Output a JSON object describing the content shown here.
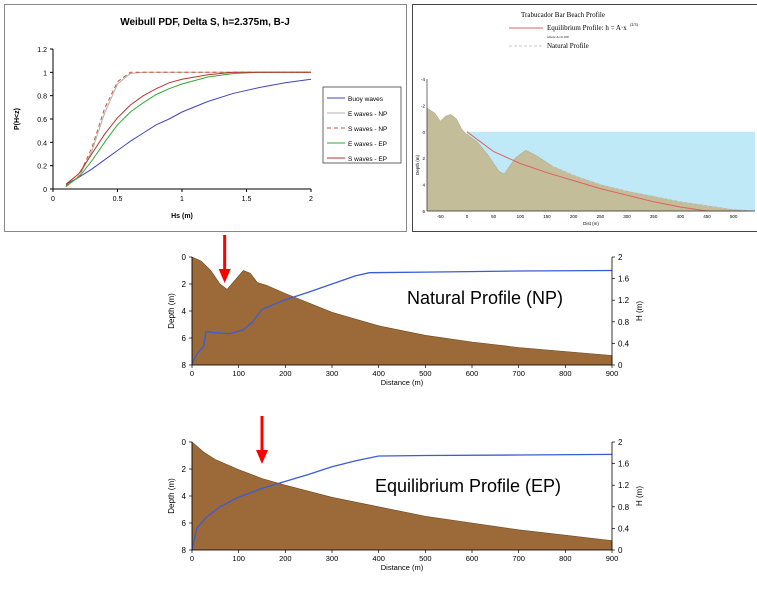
{
  "colors": {
    "sand": "#9b6a38",
    "sand_light": "#c4bd9a",
    "water": "#bfe9f7",
    "blue": "#4f52c8",
    "line_blue": "#3b5bd9",
    "arrow": "#ff0000",
    "red_curve": "#e06060",
    "dash_curve": "#c8c8c8"
  },
  "chart_data": [
    {
      "id": "weibull",
      "type": "line",
      "title": "Weibull PDF, Delta S, h=2.375m, B-J",
      "xlabel": "Hs (m)",
      "ylabel": "P(H<z)",
      "xlim": [
        0,
        2
      ],
      "ylim": [
        0,
        1.2
      ],
      "xticks": [
        "0",
        "0.5",
        "1",
        "1.5",
        "2"
      ],
      "yticks": [
        "0",
        "0.2",
        "0.4",
        "0.6",
        "0.8",
        "1",
        "1.2"
      ],
      "legend": "right",
      "legend_entries": [
        "Buoy waves",
        "E waves - NP",
        "S waves - NP",
        "E waves - EP",
        "S waves - EP"
      ],
      "series": [
        {
          "name": "Buoy waves",
          "color": "#4444bb",
          "dash": "",
          "points": [
            [
              0.1,
              0.04
            ],
            [
              0.2,
              0.1
            ],
            [
              0.3,
              0.17
            ],
            [
              0.4,
              0.25
            ],
            [
              0.5,
              0.33
            ],
            [
              0.6,
              0.41
            ],
            [
              0.7,
              0.48
            ],
            [
              0.8,
              0.55
            ],
            [
              0.9,
              0.6
            ],
            [
              1.0,
              0.66
            ],
            [
              1.2,
              0.75
            ],
            [
              1.4,
              0.82
            ],
            [
              1.6,
              0.87
            ],
            [
              1.8,
              0.91
            ],
            [
              2.0,
              0.94
            ]
          ]
        },
        {
          "name": "E waves - NP",
          "color": "#b0b0b0",
          "dash": "",
          "points": [
            [
              0.1,
              0.02
            ],
            [
              0.2,
              0.1
            ],
            [
              0.3,
              0.32
            ],
            [
              0.4,
              0.65
            ],
            [
              0.5,
              0.9
            ],
            [
              0.6,
              0.99
            ],
            [
              0.7,
              1.0
            ],
            [
              2.0,
              1.0
            ]
          ]
        },
        {
          "name": "S waves - NP",
          "color": "#cc5533",
          "dash": "4,3",
          "points": [
            [
              0.1,
              0.02
            ],
            [
              0.2,
              0.11
            ],
            [
              0.3,
              0.35
            ],
            [
              0.4,
              0.69
            ],
            [
              0.5,
              0.92
            ],
            [
              0.6,
              1.0
            ],
            [
              0.7,
              1.0
            ],
            [
              2.0,
              1.0
            ]
          ]
        },
        {
          "name": "E waves - EP",
          "color": "#33aa33",
          "dash": "",
          "points": [
            [
              0.1,
              0.03
            ],
            [
              0.2,
              0.1
            ],
            [
              0.3,
              0.24
            ],
            [
              0.4,
              0.4
            ],
            [
              0.5,
              0.55
            ],
            [
              0.6,
              0.66
            ],
            [
              0.7,
              0.74
            ],
            [
              0.8,
              0.81
            ],
            [
              0.9,
              0.86
            ],
            [
              1.0,
              0.9
            ],
            [
              1.2,
              0.96
            ],
            [
              1.4,
              0.99
            ],
            [
              1.6,
              1.0
            ],
            [
              2.0,
              1.0
            ]
          ]
        },
        {
          "name": "S waves - EP",
          "color": "#bb3333",
          "dash": "",
          "points": [
            [
              0.1,
              0.04
            ],
            [
              0.2,
              0.13
            ],
            [
              0.3,
              0.3
            ],
            [
              0.4,
              0.47
            ],
            [
              0.5,
              0.61
            ],
            [
              0.6,
              0.72
            ],
            [
              0.7,
              0.8
            ],
            [
              0.8,
              0.86
            ],
            [
              0.9,
              0.91
            ],
            [
              1.0,
              0.94
            ],
            [
              1.2,
              0.98
            ],
            [
              1.4,
              1.0
            ],
            [
              2.0,
              1.0
            ]
          ]
        }
      ]
    },
    {
      "id": "trabucador",
      "type": "area",
      "title": "Trabucador Bar Beach Profile",
      "legend_entries": [
        "Equilibrium Profile: h = A·x",
        "Natural Profile"
      ],
      "legend_exponent": "(2/3)",
      "legend_note": "where A=0.109",
      "xlabel": "Dist (m)",
      "ylabel": "Depth (m)",
      "xlim": [
        -75,
        540
      ],
      "ylim": [
        -4,
        6
      ],
      "xticks": [
        "-50",
        "0",
        "50",
        "100",
        "150",
        "200",
        "250",
        "300",
        "350",
        "400",
        "450",
        "500"
      ],
      "yticks": [
        "-4",
        "-2",
        "0",
        "2",
        "4",
        "6"
      ],
      "natural_profile": [
        [
          -75,
          -1.8
        ],
        [
          -60,
          -1.4
        ],
        [
          -50,
          -0.8
        ],
        [
          -40,
          -1.2
        ],
        [
          -30,
          -1.3
        ],
        [
          -20,
          -1.0
        ],
        [
          -10,
          -0.2
        ],
        [
          0,
          0.2
        ],
        [
          20,
          0.8
        ],
        [
          40,
          1.8
        ],
        [
          60,
          3.0
        ],
        [
          70,
          3.2
        ],
        [
          90,
          2.0
        ],
        [
          110,
          1.4
        ],
        [
          130,
          1.8
        ],
        [
          160,
          2.6
        ],
        [
          200,
          3.3
        ],
        [
          250,
          4.0
        ],
        [
          300,
          4.5
        ],
        [
          350,
          4.9
        ],
        [
          400,
          5.3
        ],
        [
          450,
          5.6
        ],
        [
          500,
          5.9
        ],
        [
          540,
          6.0
        ]
      ],
      "equilibrium_profile": [
        [
          0,
          0
        ],
        [
          50,
          1.5
        ],
        [
          100,
          2.4
        ],
        [
          150,
          3.1
        ],
        [
          200,
          3.7
        ],
        [
          250,
          4.3
        ],
        [
          300,
          4.8
        ],
        [
          350,
          5.3
        ],
        [
          400,
          5.7
        ],
        [
          450,
          6.0
        ],
        [
          540,
          6.0
        ]
      ]
    },
    {
      "id": "natural_profile",
      "type": "area",
      "label": "Natural Profile (NP)",
      "xlabel": "Distance (m)",
      "ylabel": "Depth (m)",
      "y2label": "H (m)",
      "xlim": [
        0,
        900
      ],
      "ylim": [
        0,
        8
      ],
      "y2lim": [
        0,
        2
      ],
      "xticks": [
        "0",
        "100",
        "200",
        "300",
        "400",
        "500",
        "600",
        "700",
        "800",
        "900"
      ],
      "yticks": [
        "0",
        "2",
        "4",
        "6",
        "8"
      ],
      "y2ticks": [
        "0",
        "0.4",
        "0.8",
        "1.2",
        "1.6",
        "2"
      ],
      "arrow_x": 70,
      "depth": [
        [
          0,
          0
        ],
        [
          20,
          0.3
        ],
        [
          40,
          1
        ],
        [
          60,
          2
        ],
        [
          75,
          2.4
        ],
        [
          90,
          1.8
        ],
        [
          110,
          1
        ],
        [
          125,
          1.2
        ],
        [
          140,
          1.9
        ],
        [
          160,
          2.1
        ],
        [
          200,
          2.7
        ],
        [
          250,
          3.4
        ],
        [
          300,
          4.1
        ],
        [
          350,
          4.6
        ],
        [
          400,
          5.1
        ],
        [
          500,
          5.8
        ],
        [
          600,
          6.3
        ],
        [
          700,
          6.7
        ],
        [
          800,
          7.0
        ],
        [
          900,
          7.3
        ]
      ],
      "wave_height": [
        [
          0,
          0.02
        ],
        [
          10,
          0.2
        ],
        [
          25,
          0.35
        ],
        [
          30,
          0.62
        ],
        [
          50,
          0.6
        ],
        [
          80,
          0.58
        ],
        [
          110,
          0.65
        ],
        [
          130,
          0.8
        ],
        [
          150,
          1.03
        ],
        [
          200,
          1.21
        ],
        [
          250,
          1.35
        ],
        [
          300,
          1.5
        ],
        [
          350,
          1.65
        ],
        [
          380,
          1.71
        ],
        [
          500,
          1.72
        ],
        [
          700,
          1.74
        ],
        [
          900,
          1.75
        ]
      ]
    },
    {
      "id": "equilibrium_profile",
      "type": "area",
      "label": "Equilibrium Profile (EP)",
      "xlabel": "Distance (m)",
      "ylabel": "Depth (m)",
      "y2label": "H (m)",
      "xlim": [
        0,
        900
      ],
      "ylim": [
        0,
        8
      ],
      "y2lim": [
        0,
        2
      ],
      "xticks": [
        "0",
        "100",
        "200",
        "300",
        "400",
        "500",
        "600",
        "700",
        "800",
        "900"
      ],
      "yticks": [
        "0",
        "2",
        "4",
        "6",
        "8"
      ],
      "y2ticks": [
        "0",
        "0.4",
        "0.8",
        "1.2",
        "1.6",
        "2"
      ],
      "arrow_x": 150,
      "depth": [
        [
          0,
          0
        ],
        [
          25,
          0.75
        ],
        [
          50,
          1.3
        ],
        [
          100,
          2.05
        ],
        [
          150,
          2.7
        ],
        [
          200,
          3.2
        ],
        [
          300,
          4.1
        ],
        [
          400,
          4.8
        ],
        [
          500,
          5.5
        ],
        [
          600,
          6.0
        ],
        [
          700,
          6.5
        ],
        [
          800,
          6.9
        ],
        [
          900,
          7.3
        ]
      ],
      "wave_height": [
        [
          0,
          0
        ],
        [
          10,
          0.4
        ],
        [
          30,
          0.6
        ],
        [
          60,
          0.8
        ],
        [
          100,
          0.98
        ],
        [
          150,
          1.14
        ],
        [
          200,
          1.27
        ],
        [
          250,
          1.4
        ],
        [
          300,
          1.54
        ],
        [
          350,
          1.65
        ],
        [
          400,
          1.74
        ],
        [
          500,
          1.75
        ],
        [
          700,
          1.76
        ],
        [
          900,
          1.77
        ]
      ]
    }
  ]
}
